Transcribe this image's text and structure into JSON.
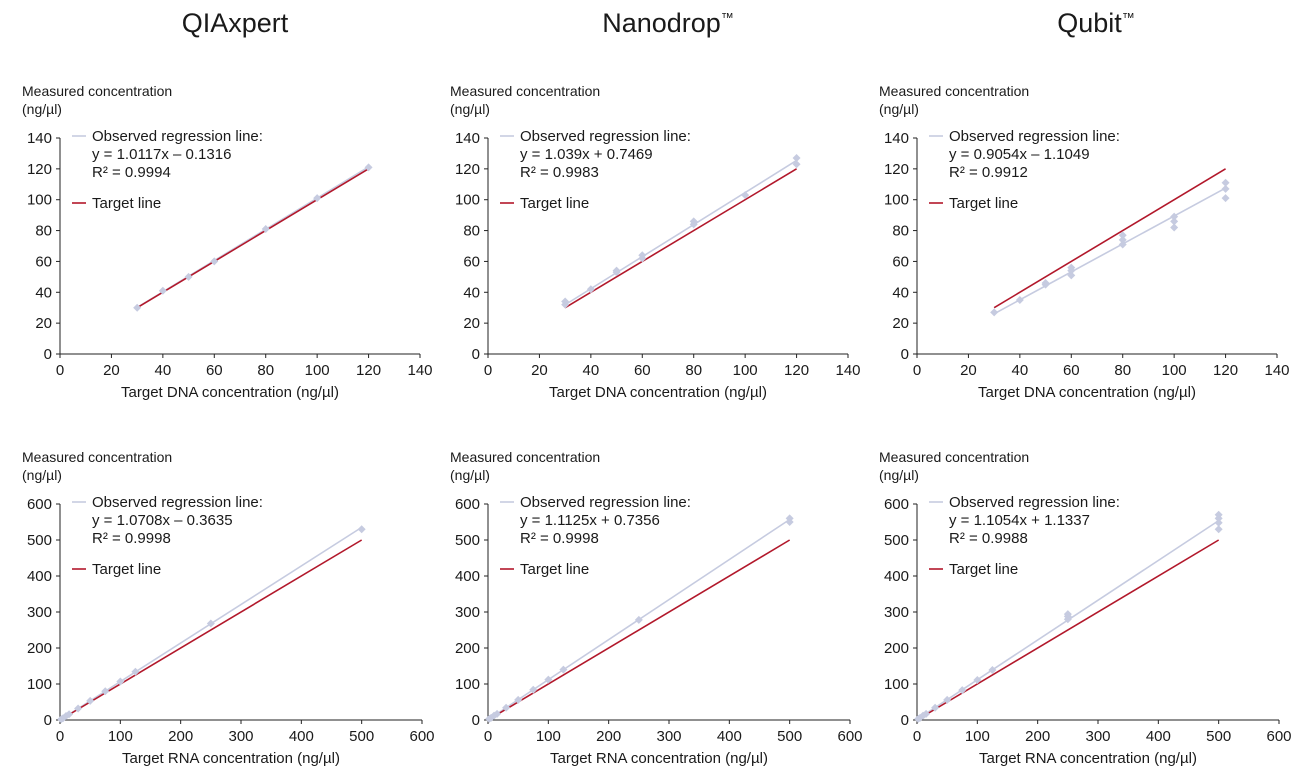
{
  "columns": [
    {
      "title": "QIAxpert",
      "tm": ""
    },
    {
      "title": "Nanodrop",
      "tm": "™"
    },
    {
      "title": "Qubit",
      "tm": "™"
    }
  ],
  "colors": {
    "regression": "#c6cbe0",
    "target": "#b2182b",
    "axis": "#222222"
  },
  "chart_data": [
    {
      "type": "scatter",
      "panel": "dna-qiaxpert",
      "ylabel_line1": "Measured concentration",
      "ylabel_line2": "(ng/µl)",
      "xlabel": "Target DNA concentration (ng/µl)",
      "xlim": [
        0,
        140
      ],
      "ylim": [
        0,
        140
      ],
      "xticks": [
        0,
        20,
        40,
        60,
        80,
        100,
        120,
        140
      ],
      "yticks": [
        0,
        20,
        40,
        60,
        80,
        100,
        120,
        140
      ],
      "legend_regression": "Observed regression line:",
      "equation": "y = 1.0117x – 0.1316",
      "r2": "R² = 0.9994",
      "legend_target": "Target line",
      "regression": {
        "slope": 1.0117,
        "intercept": -0.1316
      },
      "line_range": [
        30,
        120
      ],
      "points": [
        [
          30,
          30
        ],
        [
          40,
          41
        ],
        [
          50,
          50
        ],
        [
          60,
          60
        ],
        [
          80,
          81
        ],
        [
          100,
          101
        ],
        [
          120,
          121
        ]
      ]
    },
    {
      "type": "scatter",
      "panel": "dna-nanodrop",
      "ylabel_line1": "Measured concentration",
      "ylabel_line2": "(ng/µl)",
      "xlabel": "Target DNA concentration (ng/µl)",
      "xlim": [
        0,
        140
      ],
      "ylim": [
        0,
        140
      ],
      "xticks": [
        0,
        20,
        40,
        60,
        80,
        100,
        120,
        140
      ],
      "yticks": [
        0,
        20,
        40,
        60,
        80,
        100,
        120,
        140
      ],
      "legend_regression": "Observed regression line:",
      "equation": "y = 1.039x + 0.7469",
      "r2": "R² = 0.9983",
      "legend_target": "Target line",
      "regression": {
        "slope": 1.039,
        "intercept": 0.7469
      },
      "line_range": [
        30,
        120
      ],
      "points": [
        [
          30,
          32
        ],
        [
          30,
          34
        ],
        [
          40,
          42
        ],
        [
          50,
          53
        ],
        [
          50,
          54
        ],
        [
          60,
          62
        ],
        [
          60,
          64
        ],
        [
          80,
          84
        ],
        [
          80,
          86
        ],
        [
          100,
          103
        ],
        [
          120,
          123
        ],
        [
          120,
          127
        ]
      ]
    },
    {
      "type": "scatter",
      "panel": "dna-qubit",
      "ylabel_line1": "Measured concentration",
      "ylabel_line2": "(ng/µl)",
      "xlabel": "Target DNA concentration (ng/µl)",
      "xlim": [
        0,
        140
      ],
      "ylim": [
        0,
        140
      ],
      "xticks": [
        0,
        20,
        40,
        60,
        80,
        100,
        120,
        140
      ],
      "yticks": [
        0,
        20,
        40,
        60,
        80,
        100,
        120,
        140
      ],
      "legend_regression": "Observed regression line:",
      "equation": "y = 0.9054x – 1.1049",
      "r2": "R² = 0.9912",
      "legend_target": "Target line",
      "regression": {
        "slope": 0.9054,
        "intercept": -1.1049
      },
      "line_range": [
        30,
        120
      ],
      "points": [
        [
          30,
          27
        ],
        [
          40,
          35
        ],
        [
          50,
          45
        ],
        [
          50,
          46
        ],
        [
          60,
          51
        ],
        [
          60,
          54
        ],
        [
          60,
          56
        ],
        [
          80,
          71
        ],
        [
          80,
          74
        ],
        [
          80,
          77
        ],
        [
          100,
          82
        ],
        [
          100,
          86
        ],
        [
          100,
          89
        ],
        [
          120,
          101
        ],
        [
          120,
          107
        ],
        [
          120,
          111
        ]
      ]
    },
    {
      "type": "scatter",
      "panel": "rna-qiaxpert",
      "ylabel_line1": "Measured concentration",
      "ylabel_line2": "(ng/µl)",
      "xlabel": "Target RNA concentration (ng/µl)",
      "xlim": [
        0,
        600
      ],
      "ylim": [
        0,
        600
      ],
      "xticks": [
        0,
        100,
        200,
        300,
        400,
        500,
        600
      ],
      "yticks": [
        0,
        100,
        200,
        300,
        400,
        500,
        600
      ],
      "legend_regression": "Observed regression line:",
      "equation": "y = 1.0708x – 0.3635",
      "r2": "R² = 0.9998",
      "legend_target": "Target line",
      "regression": {
        "slope": 1.0708,
        "intercept": -0.3635
      },
      "line_range": [
        0,
        500
      ],
      "points": [
        [
          2,
          2
        ],
        [
          5,
          5
        ],
        [
          10,
          11
        ],
        [
          15,
          16
        ],
        [
          30,
          32
        ],
        [
          50,
          53
        ],
        [
          75,
          80
        ],
        [
          100,
          107
        ],
        [
          125,
          134
        ],
        [
          250,
          268
        ],
        [
          500,
          530
        ]
      ]
    },
    {
      "type": "scatter",
      "panel": "rna-nanodrop",
      "ylabel_line1": "Measured concentration",
      "ylabel_line2": "(ng/µl)",
      "xlabel": "Target RNA concentration (ng/µl)",
      "xlim": [
        0,
        600
      ],
      "ylim": [
        0,
        600
      ],
      "xticks": [
        0,
        100,
        200,
        300,
        400,
        500,
        600
      ],
      "yticks": [
        0,
        100,
        200,
        300,
        400,
        500,
        600
      ],
      "legend_regression": "Observed regression line:",
      "equation": "y = 1.1125x + 0.7356",
      "r2": "R² = 0.9998",
      "legend_target": "Target line",
      "regression": {
        "slope": 1.1125,
        "intercept": 0.7356
      },
      "line_range": [
        0,
        500
      ],
      "points": [
        [
          2,
          3
        ],
        [
          5,
          6
        ],
        [
          10,
          12
        ],
        [
          15,
          17
        ],
        [
          30,
          34
        ],
        [
          50,
          56
        ],
        [
          75,
          84
        ],
        [
          100,
          112
        ],
        [
          125,
          140
        ],
        [
          250,
          278
        ],
        [
          500,
          550
        ],
        [
          500,
          560
        ]
      ]
    },
    {
      "type": "scatter",
      "panel": "rna-qubit",
      "ylabel_line1": "Measured concentration",
      "ylabel_line2": "(ng/µl)",
      "xlabel": "Target RNA concentration (ng/µl)",
      "xlim": [
        0,
        600
      ],
      "ylim": [
        0,
        600
      ],
      "xticks": [
        0,
        100,
        200,
        300,
        400,
        500,
        600
      ],
      "yticks": [
        0,
        100,
        200,
        300,
        400,
        500,
        600
      ],
      "legend_regression": "Observed regression line:",
      "equation": "y = 1.1054x + 1.1337",
      "r2": "R² = 0.9988",
      "legend_target": "Target line",
      "regression": {
        "slope": 1.1054,
        "intercept": 1.1337
      },
      "line_range": [
        0,
        500
      ],
      "points": [
        [
          2,
          3
        ],
        [
          5,
          6
        ],
        [
          10,
          12
        ],
        [
          15,
          17
        ],
        [
          30,
          34
        ],
        [
          50,
          56
        ],
        [
          75,
          83
        ],
        [
          100,
          111
        ],
        [
          125,
          139
        ],
        [
          250,
          280
        ],
        [
          250,
          288
        ],
        [
          250,
          294
        ],
        [
          500,
          530
        ],
        [
          500,
          548
        ],
        [
          500,
          560
        ],
        [
          500,
          570
        ]
      ]
    }
  ]
}
